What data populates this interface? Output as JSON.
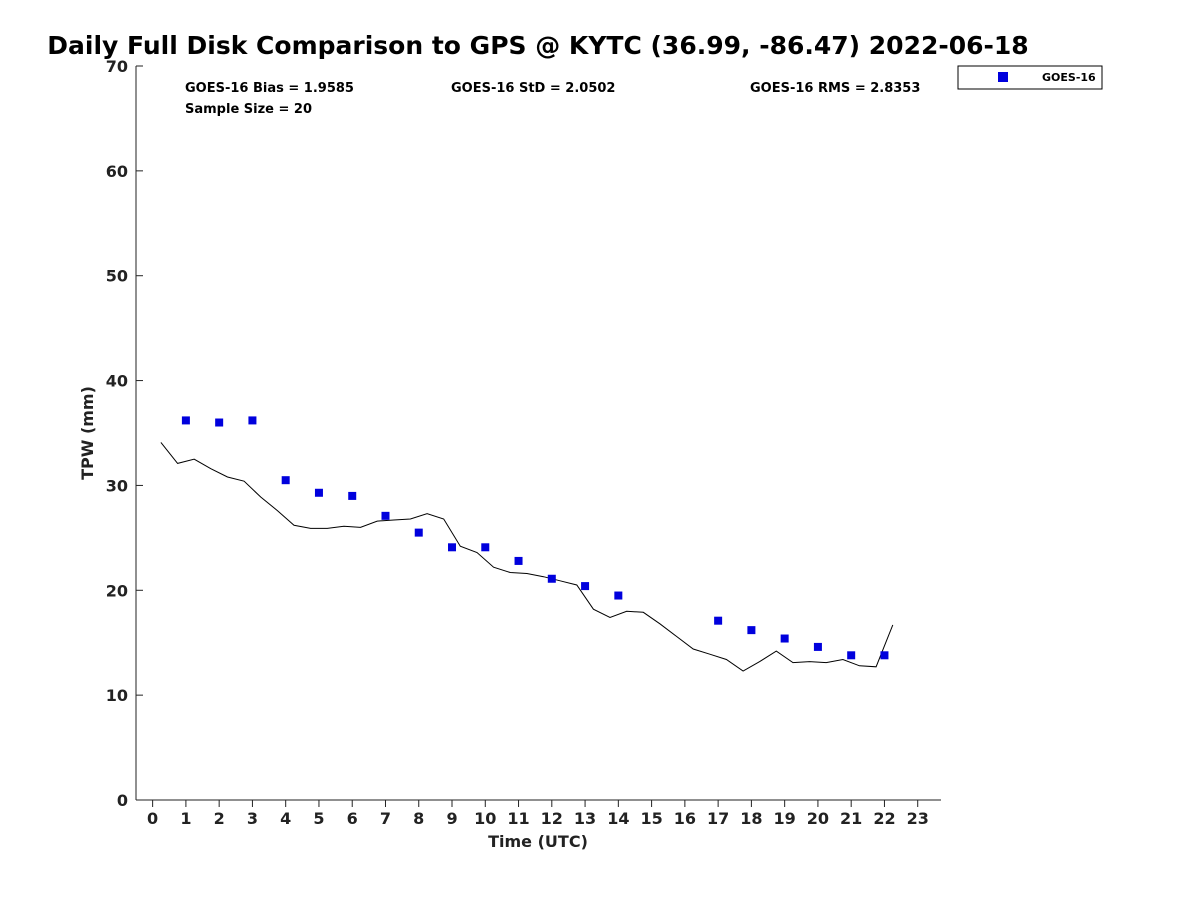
{
  "chart_data": {
    "type": "scatter",
    "title": "Daily Full Disk Comparison to GPS @ KYTC (36.99, -86.47) 2022-06-18",
    "xlabel": "Time (UTC)",
    "ylabel": "TPW (mm)",
    "xlim": [
      -0.5,
      23.7
    ],
    "ylim": [
      0,
      70
    ],
    "x_ticks": [
      "0",
      "1",
      "2",
      "3",
      "4",
      "5",
      "6",
      "7",
      "8",
      "9",
      "10",
      "11",
      "12",
      "13",
      "14",
      "15",
      "16",
      "17",
      "18",
      "19",
      "20",
      "21",
      "22",
      "23"
    ],
    "y_ticks": [
      "0",
      "10",
      "20",
      "30",
      "40",
      "50",
      "60",
      "70"
    ],
    "grid": false,
    "legend_position": "top-right",
    "stats": {
      "bias": "GOES-16 Bias = 1.9585",
      "std": "GOES-16 StD = 2.0502",
      "rms": "GOES-16 RMS = 2.8353",
      "sample": "Sample Size = 20"
    },
    "series": [
      {
        "name": "GOES-16",
        "kind": "scatter",
        "marker": "square",
        "color": "#0000dd",
        "x": [
          1,
          2,
          3,
          4,
          5,
          6,
          7,
          8,
          9,
          10,
          11,
          12,
          13,
          14,
          17,
          18,
          19,
          20,
          21,
          22
        ],
        "y": [
          36.2,
          36.0,
          36.2,
          30.5,
          29.3,
          29.0,
          27.1,
          25.5,
          24.1,
          24.1,
          22.8,
          21.1,
          20.4,
          19.5,
          17.1,
          16.2,
          15.4,
          14.6,
          13.8,
          13.8
        ]
      },
      {
        "kind": "line",
        "color": "#000000",
        "x": [
          0.25,
          0.75,
          1.25,
          1.75,
          2.25,
          2.75,
          3.25,
          3.75,
          4.25,
          4.75,
          5.25,
          5.75,
          6.25,
          6.75,
          7.25,
          7.75,
          8.25,
          8.75,
          9.25,
          9.75,
          10.25,
          10.75,
          11.25,
          11.75,
          12.25,
          12.75,
          13.25,
          13.75,
          14.25,
          14.75,
          15.25,
          15.75,
          16.25,
          16.75,
          17.25,
          17.75,
          18.25,
          18.75,
          19.25,
          19.75,
          20.25,
          20.75,
          21.25,
          21.75,
          22.25
        ],
        "y": [
          34.1,
          32.1,
          32.5,
          31.6,
          30.8,
          30.4,
          28.9,
          27.6,
          26.2,
          25.9,
          25.9,
          26.1,
          26.0,
          26.6,
          26.7,
          26.8,
          27.3,
          26.8,
          24.2,
          23.6,
          22.2,
          21.7,
          21.6,
          21.3,
          20.9,
          20.5,
          18.2,
          17.4,
          18.0,
          17.9,
          16.8,
          15.6,
          14.4,
          13.9,
          13.4,
          12.3,
          13.2,
          14.2,
          13.1,
          13.2,
          13.1,
          13.4,
          12.8,
          12.7,
          16.7
        ]
      }
    ]
  }
}
